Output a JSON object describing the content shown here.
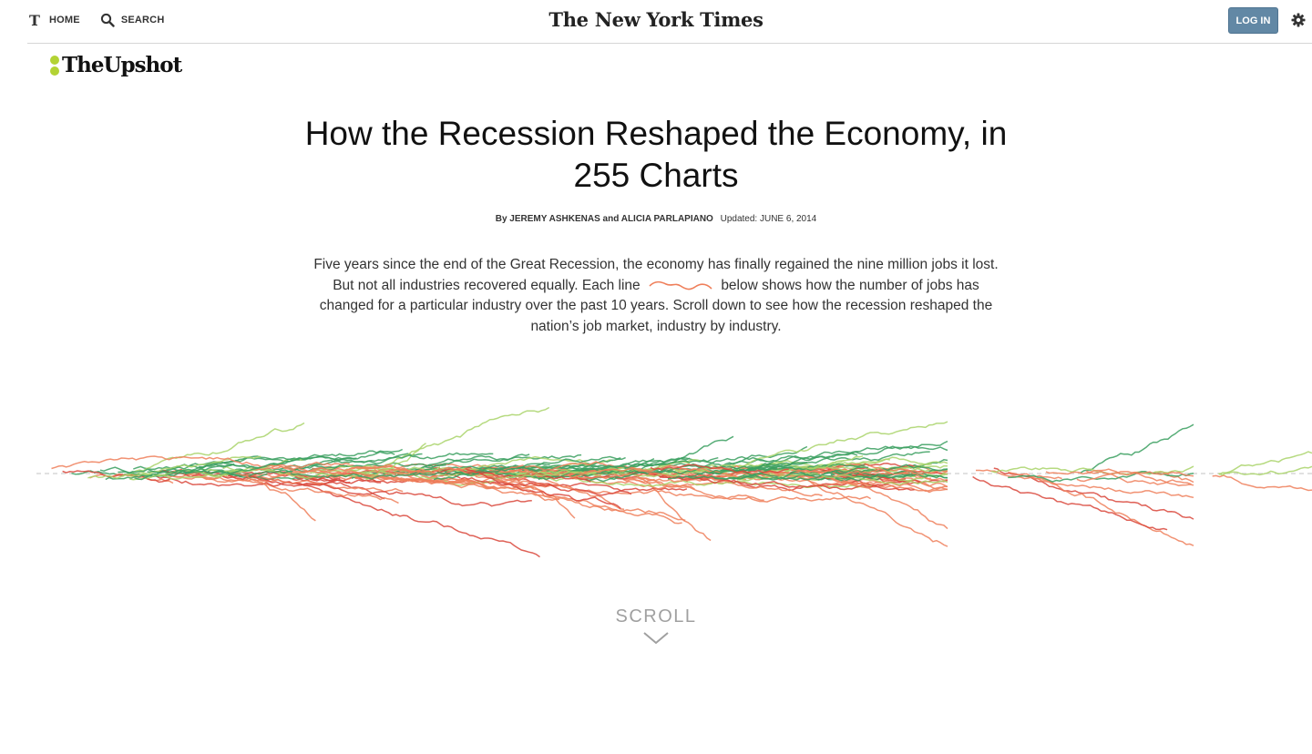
{
  "nav": {
    "home_label": "HOME",
    "search_label": "SEARCH",
    "brand": "The New York Times",
    "login_label": "LOG IN",
    "t_logo_glyph": "T"
  },
  "section": {
    "logo_text": "TheUpshot"
  },
  "article": {
    "headline": "How the Recession Reshaped the Economy, in 255 Charts",
    "byline_authors": "By JEREMY ASHKENAS and ALICIA PARLAPIANO",
    "byline_updated": "Updated: JUNE 6, 2014",
    "intro_part1": "Five years since the end of the Great Recession, the economy has finally regained the nine million jobs it lost. But not all industries recovered equally. Each line",
    "intro_part2": "below shows how the number of jobs has changed for a particular industry over the past 10 years. Scroll down to see how the recession reshaped the nation’s job market, industry by  industry."
  },
  "colors": {
    "accent_upshot": "#b3d334",
    "login_button": "#6288a5",
    "line_declined": "#ef7f5a",
    "line_declined_strong": "#d9473b",
    "line_grew": "#3a9f5f",
    "line_grew_light": "#a9d46a"
  },
  "chart_data": {
    "type": "line",
    "title": "",
    "series_count": 255,
    "baseline": "dashed horizontal zero line",
    "legend": "none"
  },
  "scroll": {
    "label": "SCROLL",
    "icon": "chevron-down-icon"
  }
}
